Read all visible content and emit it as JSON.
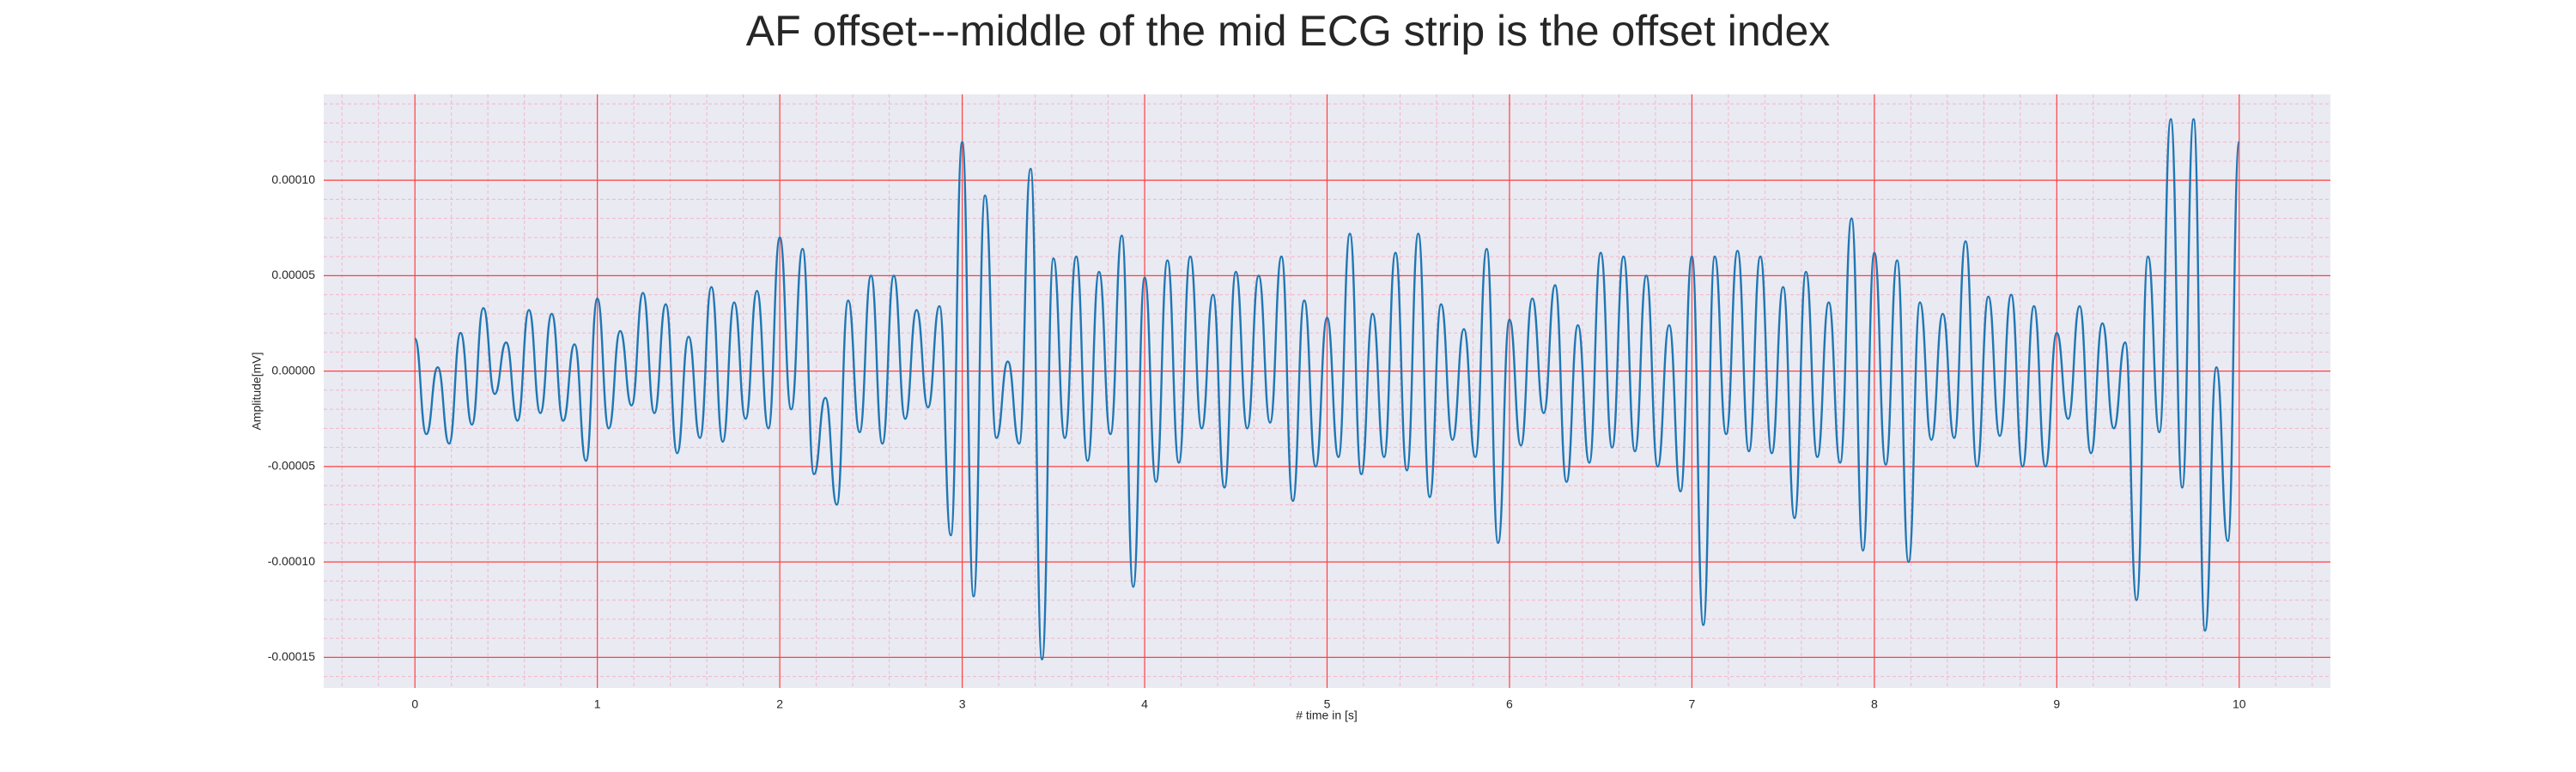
{
  "chart_data": {
    "type": "line",
    "title": "AF offset---middle of the mid ECG strip is the offset index",
    "xlabel": "# time in [s]",
    "ylabel": "Amplitude[mV]",
    "xlim": [
      -0.5,
      10.5
    ],
    "ylim": [
      -0.000166,
      0.000145
    ],
    "xticks": [
      0,
      1,
      2,
      3,
      4,
      5,
      6,
      7,
      8,
      9,
      10
    ],
    "yticks": [
      {
        "value": -0.00015,
        "label": "-0.00015"
      },
      {
        "value": -0.0001,
        "label": "-0.00010"
      },
      {
        "value": -5e-05,
        "label": "-0.00005"
      },
      {
        "value": 0,
        "label": "0.00000"
      },
      {
        "value": 5e-05,
        "label": "0.00005"
      },
      {
        "value": 0.0001,
        "label": "0.00010"
      }
    ],
    "grid": true,
    "minor_grid": true,
    "grid_color": "#ff4040",
    "minor_grid_color": "#f4b6c8",
    "background": "#eaeaf2",
    "series": [
      {
        "color": "#1f77b4",
        "x": [
          0,
          0.0625,
          0.125,
          0.1875,
          0.25,
          0.3125,
          0.375,
          0.4375,
          0.5,
          0.5625,
          0.625,
          0.6875,
          0.75,
          0.8125,
          0.875,
          0.9375,
          1,
          1.0625,
          1.125,
          1.1875,
          1.25,
          1.3125,
          1.375,
          1.4375,
          1.5,
          1.5625,
          1.625,
          1.6875,
          1.75,
          1.8125,
          1.875,
          1.9375,
          2,
          2.0625,
          2.125,
          2.1875,
          2.25,
          2.3125,
          2.375,
          2.4375,
          2.5,
          2.5625,
          2.625,
          2.6875,
          2.75,
          2.8125,
          2.875,
          2.9375,
          3,
          3.0625,
          3.125,
          3.1875,
          3.25,
          3.3125,
          3.375,
          3.4375,
          3.5,
          3.5625,
          3.625,
          3.6875,
          3.75,
          3.8125,
          3.875,
          3.9375,
          4,
          4.0625,
          4.125,
          4.1875,
          4.25,
          4.3125,
          4.375,
          4.4375,
          4.5,
          4.5625,
          4.625,
          4.6875,
          4.75,
          4.8125,
          4.875,
          4.9375,
          5,
          5.0625,
          5.125,
          5.1875,
          5.25,
          5.3125,
          5.375,
          5.4375,
          5.5,
          5.5625,
          5.625,
          5.6875,
          5.75,
          5.8125,
          5.875,
          5.9375,
          6,
          6.0625,
          6.125,
          6.1875,
          6.25,
          6.3125,
          6.375,
          6.4375,
          6.5,
          6.5625,
          6.625,
          6.6875,
          6.75,
          6.8125,
          6.875,
          6.9375,
          7,
          7.0625,
          7.125,
          7.1875,
          7.25,
          7.3125,
          7.375,
          7.4375,
          7.5,
          7.5625,
          7.625,
          7.6875,
          7.75,
          7.8125,
          7.875,
          7.9375,
          8,
          8.0625,
          8.125,
          8.1875,
          8.25,
          8.3125,
          8.375,
          8.4375,
          8.5,
          8.5625,
          8.625,
          8.6875,
          8.75,
          8.8125,
          8.875,
          8.9375,
          9,
          9.0625,
          9.125,
          9.1875,
          9.25,
          9.3125,
          9.375,
          9.4375,
          9.5,
          9.5625,
          9.625,
          9.6875,
          9.75,
          9.8125,
          9.875,
          9.9375,
          10
        ],
        "values": [
          1.7e-05,
          -3.3e-05,
          2e-06,
          -3.8e-05,
          2e-05,
          -2.8e-05,
          3.3e-05,
          -1.2e-05,
          1.5e-05,
          -2.6e-05,
          3.2e-05,
          -2.2e-05,
          3e-05,
          -2.6e-05,
          1.4e-05,
          -4.7e-05,
          3.8e-05,
          -3e-05,
          2.1e-05,
          -1.8e-05,
          4.1e-05,
          -2.2e-05,
          3.5e-05,
          -4.3e-05,
          1.8e-05,
          -3.5e-05,
          4.4e-05,
          -3.7e-05,
          3.6e-05,
          -2.5e-05,
          4.2e-05,
          -3e-05,
          7e-05,
          -2e-05,
          6.4e-05,
          -5.4e-05,
          -1.4e-05,
          -7e-05,
          3.7e-05,
          -3.2e-05,
          5e-05,
          -3.8e-05,
          5e-05,
          -2.5e-05,
          3.2e-05,
          -1.9e-05,
          3.4e-05,
          -8.6e-05,
          0.00012,
          -0.000118,
          9.2e-05,
          -3.5e-05,
          5e-06,
          -3.8e-05,
          0.000106,
          -0.000151,
          5.9e-05,
          -3.5e-05,
          6e-05,
          -4.7e-05,
          5.2e-05,
          -3.3e-05,
          7.1e-05,
          -0.000113,
          4.9e-05,
          -5.8e-05,
          5.8e-05,
          -4.8e-05,
          6e-05,
          -3e-05,
          4e-05,
          -6.1e-05,
          5.2e-05,
          -3e-05,
          5e-05,
          -2.7e-05,
          6e-05,
          -6.8e-05,
          3.7e-05,
          -5e-05,
          2.8e-05,
          -4.5e-05,
          7.2e-05,
          -5.4e-05,
          3e-05,
          -4.5e-05,
          6.2e-05,
          -5.2e-05,
          7.2e-05,
          -6.6e-05,
          3.5e-05,
          -3.6e-05,
          2.2e-05,
          -4.5e-05,
          6.4e-05,
          -9e-05,
          2.7e-05,
          -3.9e-05,
          3.8e-05,
          -2.2e-05,
          4.5e-05,
          -5.8e-05,
          2.4e-05,
          -4.8e-05,
          6.2e-05,
          -4e-05,
          6e-05,
          -4.2e-05,
          5e-05,
          -5e-05,
          2.4e-05,
          -6.3e-05,
          6e-05,
          -0.000133,
          6e-05,
          -3.3e-05,
          6.3e-05,
          -4.2e-05,
          6e-05,
          -4.3e-05,
          4.4e-05,
          -7.7e-05,
          5.2e-05,
          -4.5e-05,
          3.6e-05,
          -4.8e-05,
          8e-05,
          -9.4e-05,
          6.2e-05,
          -4.9e-05,
          5.8e-05,
          -0.0001,
          3.6e-05,
          -3.6e-05,
          3e-05,
          -3.5e-05,
          6.8e-05,
          -5e-05,
          3.9e-05,
          -3.4e-05,
          4e-05,
          -5e-05,
          3.4e-05,
          -5e-05,
          2e-05,
          -2.5e-05,
          3.4e-05,
          -4.3e-05,
          2.5e-05,
          -3e-05,
          1.5e-05,
          -0.00012,
          6e-05,
          -3.2e-05,
          0.000132,
          -6.1e-05,
          0.000132,
          -0.000136,
          2e-06,
          -8.9e-05,
          0.00012
        ]
      }
    ]
  }
}
